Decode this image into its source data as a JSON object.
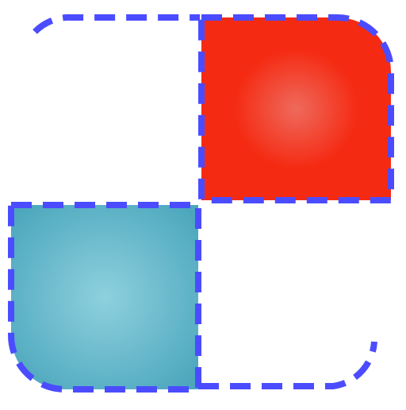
{
  "icon": {
    "name": "checkerboard-tiles-icon",
    "colors": {
      "background": "#ffffff",
      "red_tile_center": "#ee6a5c",
      "red_tile_edge": "#f52a12",
      "blue_tile_center": "#8ed0de",
      "blue_tile_edge": "#4ca7bd",
      "dash_stroke": "#4b4cff"
    }
  }
}
